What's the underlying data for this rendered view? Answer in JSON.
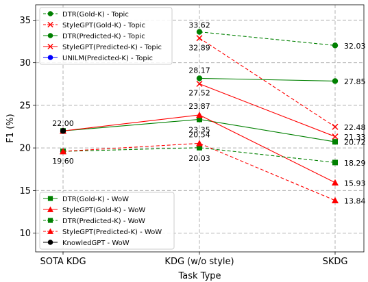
{
  "chart_data": {
    "type": "line",
    "xlabel": "Task Type",
    "ylabel": "F1 (%)",
    "categories": [
      "SOTA KDG",
      "KDG (w/o style)",
      "SKDG"
    ],
    "ylim": [
      7.8,
      36.8
    ],
    "yticks": [
      10,
      15,
      20,
      25,
      30,
      35
    ],
    "grid": true,
    "series": [
      {
        "name": "DTR(Gold-K) - Topic",
        "color": "#008000",
        "marker": "circle",
        "dash": true,
        "values": [
          null,
          33.62,
          32.03
        ]
      },
      {
        "name": "StyleGPT(Gold-K) - Topic",
        "color": "#ff0000",
        "marker": "x",
        "dash": true,
        "values": [
          null,
          32.89,
          22.48
        ]
      },
      {
        "name": "DTR(Predicted-K) - Topic",
        "color": "#008000",
        "marker": "circle",
        "dash": false,
        "values": [
          null,
          28.17,
          27.85
        ]
      },
      {
        "name": "StyleGPT(Predicted-K) - Topic",
        "color": "#ff0000",
        "marker": "x",
        "dash": false,
        "values": [
          null,
          27.52,
          21.33
        ]
      },
      {
        "name": "UNILM(Predicted-K) - Topic",
        "color": "#0000ff",
        "marker": "circle",
        "dash": false,
        "values": [
          19.6,
          null,
          null
        ]
      },
      {
        "name": "DTR(Gold-K) - WoW",
        "color": "#008000",
        "marker": "square",
        "dash": false,
        "values": [
          22.0,
          23.35,
          20.72
        ]
      },
      {
        "name": "StyleGPT(Gold-K) - WoW",
        "color": "#ff0000",
        "marker": "triangle",
        "dash": false,
        "values": [
          22.0,
          23.87,
          15.93
        ]
      },
      {
        "name": "DTR(Predicted-K) - WoW",
        "color": "#008000",
        "marker": "square",
        "dash": true,
        "values": [
          19.6,
          20.03,
          18.29
        ]
      },
      {
        "name": "StyleGPT(Predicted-K) - WoW",
        "color": "#ff0000",
        "marker": "triangle",
        "dash": true,
        "values": [
          19.6,
          20.54,
          13.84
        ]
      },
      {
        "name": "KnowledGPT - WoW",
        "color": "#000000",
        "marker": "circle",
        "dash": false,
        "values": [
          22.0,
          null,
          null
        ]
      }
    ],
    "annotations": [
      {
        "text": "22.00",
        "x": 0,
        "y": 22.0
      },
      {
        "text": "19.60",
        "x": 0,
        "y": 19.6
      },
      {
        "text": "33.62",
        "x": 1,
        "y": 33.62
      },
      {
        "text": "32.89",
        "x": 1,
        "y": 32.89
      },
      {
        "text": "28.17",
        "x": 1,
        "y": 28.17
      },
      {
        "text": "27.52",
        "x": 1,
        "y": 27.52
      },
      {
        "text": "23.87",
        "x": 1,
        "y": 23.87
      },
      {
        "text": "23.35",
        "x": 1,
        "y": 23.35
      },
      {
        "text": "20.54",
        "x": 1,
        "y": 20.54
      },
      {
        "text": "20.03",
        "x": 1,
        "y": 20.03
      },
      {
        "text": "32.03",
        "x": 2,
        "y": 32.03
      },
      {
        "text": "27.85",
        "x": 2,
        "y": 27.85
      },
      {
        "text": "22.48",
        "x": 2,
        "y": 22.48
      },
      {
        "text": "21.33",
        "x": 2,
        "y": 21.33
      },
      {
        "text": "20.72",
        "x": 2,
        "y": 20.72
      },
      {
        "text": "18.29",
        "x": 2,
        "y": 18.29
      },
      {
        "text": "15.93",
        "x": 2,
        "y": 15.93
      },
      {
        "text": "13.84",
        "x": 2,
        "y": 13.84
      }
    ],
    "legends": [
      {
        "position": "upper-left",
        "entries": [
          0,
          1,
          2,
          3,
          4
        ]
      },
      {
        "position": "lower-left",
        "entries": [
          5,
          6,
          7,
          8,
          9
        ]
      }
    ]
  }
}
